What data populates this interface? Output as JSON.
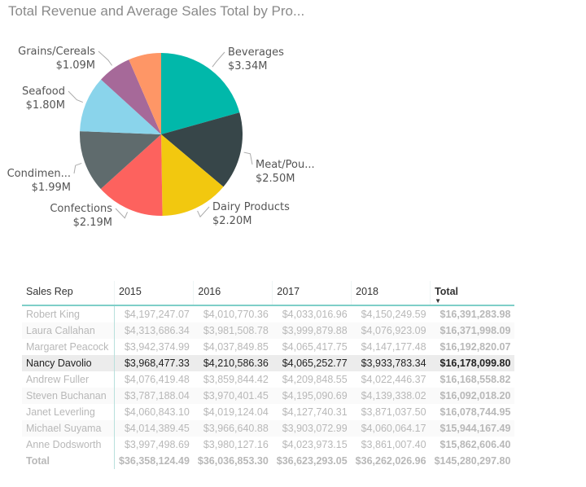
{
  "chart_data": [
    {
      "type": "pie",
      "title": "Total Revenue and Average Sales Total by Pro...",
      "slices": [
        {
          "label": "Beverages",
          "value_label": "$3.34M",
          "value": 3.34,
          "color": "#01B8AA"
        },
        {
          "label": "Meat/Pou...",
          "value_label": "$2.50M",
          "value": 2.5,
          "color": "#374649"
        },
        {
          "label": "Dairy Products",
          "value_label": "$2.20M",
          "value": 2.2,
          "color": "#F2C80F"
        },
        {
          "label": "Confections",
          "value_label": "$2.19M",
          "value": 2.19,
          "color": "#FD625E"
        },
        {
          "label": "Condimen...",
          "value_label": "$1.99M",
          "value": 1.99,
          "color": "#5F6B6D"
        },
        {
          "label": "Seafood",
          "value_label": "$1.80M",
          "value": 1.8,
          "color": "#8AD4EB"
        },
        {
          "label": "Grains/Cereals",
          "value_label": "$1.09M",
          "value": 1.09,
          "color": "#A66999"
        },
        {
          "label": "",
          "value_label": "",
          "value": 1.05,
          "color": "#FE9666"
        }
      ]
    },
    {
      "type": "table",
      "columns": [
        "Sales Rep",
        "2015",
        "2016",
        "2017",
        "2018",
        "Total"
      ],
      "sort_column": "Total",
      "sort_direction": "descending",
      "rows": [
        [
          "Robert King",
          "$4,197,247.07",
          "$4,010,770.36",
          "$4,033,016.96",
          "$4,150,249.59",
          "$16,391,283.98"
        ],
        [
          "Laura Callahan",
          "$4,313,686.34",
          "$3,981,508.78",
          "$3,999,879.88",
          "$4,076,923.09",
          "$16,371,998.09"
        ],
        [
          "Margaret Peacock",
          "$3,942,374.99",
          "$4,037,849.85",
          "$4,065,417.75",
          "$4,147,177.48",
          "$16,192,820.07"
        ],
        [
          "Nancy Davolio",
          "$3,968,477.33",
          "$4,210,586.36",
          "$4,065,252.77",
          "$3,933,783.34",
          "$16,178,099.80"
        ],
        [
          "Andrew Fuller",
          "$4,076,419.48",
          "$3,859,844.42",
          "$4,209,848.55",
          "$4,022,446.37",
          "$16,168,558.82"
        ],
        [
          "Steven Buchanan",
          "$3,787,188.04",
          "$3,970,401.45",
          "$4,195,090.69",
          "$4,139,338.02",
          "$16,092,018.20"
        ],
        [
          "Janet Leverling",
          "$4,060,843.10",
          "$4,019,124.04",
          "$4,127,740.31",
          "$3,871,037.50",
          "$16,078,744.95"
        ],
        [
          "Michael Suyama",
          "$4,014,389.45",
          "$3,966,640.88",
          "$3,903,072.99",
          "$4,060,064.17",
          "$15,944,167.49"
        ],
        [
          "Anne Dodsworth",
          "$3,997,498.69",
          "$3,980,127.16",
          "$4,023,973.15",
          "$3,861,007.40",
          "$15,862,606.40"
        ]
      ],
      "highlighted_row": "Nancy Davolio",
      "total_row": [
        "Total",
        "$36,358,124.49",
        "$36,036,853.30",
        "$36,623,293.05",
        "$36,262,026.96",
        "$145,280,297.80"
      ]
    }
  ]
}
